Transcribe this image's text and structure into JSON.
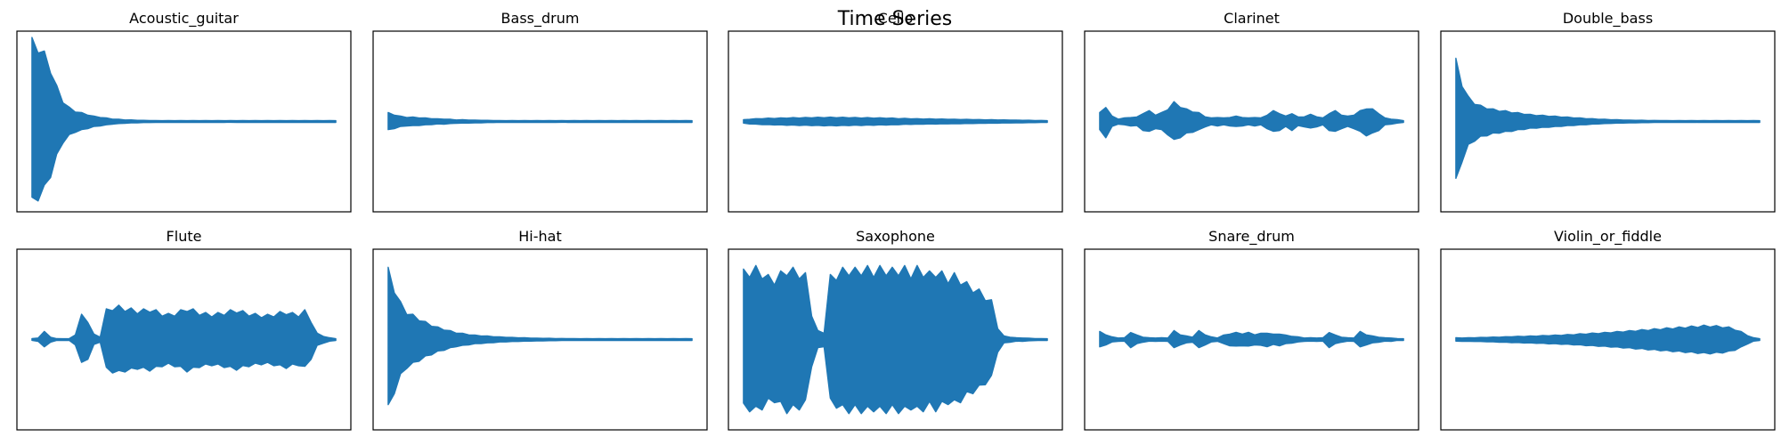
{
  "figure": {
    "title": "Time Series",
    "series_color": "#1f77b4"
  },
  "chart_data": [
    {
      "type": "line",
      "title": "Acoustic_guitar",
      "xlabel": "",
      "ylabel": "",
      "ylim": [
        -1,
        1
      ],
      "grid": false,
      "envelope": [
        0.93,
        0.88,
        0.78,
        0.62,
        0.4,
        0.24,
        0.16,
        0.12,
        0.1,
        0.08,
        0.06,
        0.05,
        0.04,
        0.03,
        0.025,
        0.02,
        0.018,
        0.015,
        0.013,
        0.012,
        0.011,
        0.01,
        0.01,
        0.01,
        0.01,
        0.01,
        0.01,
        0.01,
        0.01,
        0.01,
        0.01,
        0.01,
        0.01,
        0.01,
        0.01,
        0.01,
        0.01,
        0.01,
        0.01,
        0.01,
        0.01,
        0.01,
        0.01,
        0.01,
        0.01,
        0.01,
        0.01,
        0.01,
        0.01,
        0.01
      ]
    },
    {
      "type": "line",
      "title": "Bass_drum",
      "xlabel": "",
      "ylabel": "",
      "ylim": [
        -1,
        1
      ],
      "grid": false,
      "envelope": [
        0.1,
        0.08,
        0.06,
        0.05,
        0.05,
        0.045,
        0.04,
        0.035,
        0.03,
        0.03,
        0.025,
        0.02,
        0.02,
        0.018,
        0.016,
        0.015,
        0.013,
        0.012,
        0.01,
        0.01,
        0.01,
        0.01,
        0.01,
        0.01,
        0.01,
        0.01,
        0.01,
        0.01,
        0.01,
        0.01,
        0.01,
        0.01,
        0.01,
        0.01,
        0.01,
        0.01,
        0.01,
        0.01,
        0.01,
        0.01,
        0.01,
        0.01,
        0.01,
        0.01,
        0.01,
        0.01,
        0.01,
        0.01,
        0.01,
        0.01
      ]
    },
    {
      "type": "line",
      "title": "Cello",
      "xlabel": "",
      "ylabel": "",
      "ylim": [
        -1,
        1
      ],
      "grid": false,
      "envelope": [
        0.02,
        0.028,
        0.032,
        0.035,
        0.037,
        0.038,
        0.04,
        0.042,
        0.043,
        0.044,
        0.045,
        0.046,
        0.047,
        0.048,
        0.048,
        0.048,
        0.047,
        0.046,
        0.045,
        0.044,
        0.043,
        0.042,
        0.041,
        0.04,
        0.038,
        0.036,
        0.034,
        0.033,
        0.032,
        0.031,
        0.03,
        0.029,
        0.028,
        0.027,
        0.026,
        0.025,
        0.024,
        0.023,
        0.022,
        0.021,
        0.02,
        0.019,
        0.018,
        0.017,
        0.016,
        0.015,
        0.014,
        0.013,
        0.012,
        0.01
      ]
    },
    {
      "type": "line",
      "title": "Clarinet",
      "xlabel": "",
      "ylabel": "",
      "ylim": [
        -1,
        1
      ],
      "grid": false,
      "envelope": [
        0.1,
        0.18,
        0.06,
        0.03,
        0.04,
        0.05,
        0.05,
        0.1,
        0.12,
        0.08,
        0.1,
        0.15,
        0.22,
        0.18,
        0.14,
        0.12,
        0.1,
        0.06,
        0.04,
        0.05,
        0.04,
        0.05,
        0.06,
        0.05,
        0.04,
        0.05,
        0.04,
        0.08,
        0.12,
        0.1,
        0.06,
        0.1,
        0.05,
        0.06,
        0.08,
        0.06,
        0.04,
        0.1,
        0.12,
        0.08,
        0.06,
        0.08,
        0.12,
        0.16,
        0.14,
        0.1,
        0.04,
        0.03,
        0.02,
        0.01
      ]
    },
    {
      "type": "line",
      "title": "Double_bass",
      "xlabel": "",
      "ylabel": "",
      "ylim": [
        -1,
        1
      ],
      "grid": false,
      "envelope": [
        0.7,
        0.45,
        0.28,
        0.22,
        0.18,
        0.16,
        0.14,
        0.13,
        0.12,
        0.11,
        0.1,
        0.09,
        0.08,
        0.075,
        0.07,
        0.065,
        0.06,
        0.055,
        0.05,
        0.045,
        0.04,
        0.036,
        0.032,
        0.028,
        0.025,
        0.022,
        0.02,
        0.018,
        0.016,
        0.015,
        0.014,
        0.013,
        0.012,
        0.011,
        0.01,
        0.01,
        0.01,
        0.01,
        0.01,
        0.01,
        0.01,
        0.01,
        0.01,
        0.01,
        0.01,
        0.01,
        0.01,
        0.01,
        0.01,
        0.01
      ]
    },
    {
      "type": "line",
      "title": "Flute",
      "xlabel": "",
      "ylabel": "",
      "ylim": [
        -1,
        1
      ],
      "grid": false,
      "envelope": [
        0.01,
        0.02,
        0.09,
        0.03,
        0.01,
        0.01,
        0.01,
        0.06,
        0.28,
        0.22,
        0.06,
        0.03,
        0.34,
        0.37,
        0.38,
        0.36,
        0.35,
        0.33,
        0.34,
        0.35,
        0.33,
        0.3,
        0.29,
        0.3,
        0.33,
        0.36,
        0.34,
        0.31,
        0.3,
        0.29,
        0.3,
        0.31,
        0.33,
        0.34,
        0.32,
        0.3,
        0.29,
        0.28,
        0.28,
        0.29,
        0.31,
        0.32,
        0.3,
        0.29,
        0.33,
        0.22,
        0.07,
        0.04,
        0.02,
        0.01
      ]
    },
    {
      "type": "line",
      "title": "Hi-hat",
      "xlabel": "",
      "ylabel": "",
      "ylim": [
        -1,
        1
      ],
      "grid": false,
      "envelope": [
        0.8,
        0.6,
        0.42,
        0.32,
        0.28,
        0.24,
        0.2,
        0.17,
        0.14,
        0.12,
        0.1,
        0.08,
        0.07,
        0.06,
        0.05,
        0.045,
        0.04,
        0.035,
        0.03,
        0.027,
        0.024,
        0.022,
        0.02,
        0.018,
        0.016,
        0.015,
        0.014,
        0.013,
        0.012,
        0.011,
        0.01,
        0.01,
        0.01,
        0.01,
        0.01,
        0.01,
        0.01,
        0.01,
        0.01,
        0.01,
        0.01,
        0.01,
        0.01,
        0.01,
        0.01,
        0.01,
        0.01,
        0.01,
        0.01,
        0.01
      ]
    },
    {
      "type": "line",
      "title": "Saxophone",
      "xlabel": "",
      "ylabel": "",
      "ylim": [
        -1,
        1
      ],
      "grid": false,
      "envelope": [
        0.78,
        0.8,
        0.82,
        0.78,
        0.72,
        0.7,
        0.76,
        0.82,
        0.8,
        0.78,
        0.74,
        0.3,
        0.1,
        0.08,
        0.72,
        0.76,
        0.8,
        0.82,
        0.8,
        0.82,
        0.82,
        0.8,
        0.82,
        0.82,
        0.8,
        0.82,
        0.82,
        0.78,
        0.82,
        0.8,
        0.76,
        0.8,
        0.76,
        0.72,
        0.74,
        0.7,
        0.64,
        0.6,
        0.56,
        0.5,
        0.44,
        0.14,
        0.04,
        0.03,
        0.02,
        0.02,
        0.015,
        0.012,
        0.01,
        0.01
      ]
    },
    {
      "type": "line",
      "title": "Snare_drum",
      "xlabel": "",
      "ylabel": "",
      "ylim": [
        -1,
        1
      ],
      "grid": false,
      "envelope": [
        0.09,
        0.06,
        0.03,
        0.02,
        0.02,
        0.09,
        0.05,
        0.03,
        0.02,
        0.02,
        0.02,
        0.02,
        0.1,
        0.06,
        0.04,
        0.03,
        0.1,
        0.06,
        0.03,
        0.02,
        0.05,
        0.07,
        0.08,
        0.07,
        0.08,
        0.06,
        0.07,
        0.08,
        0.06,
        0.07,
        0.05,
        0.04,
        0.03,
        0.02,
        0.02,
        0.02,
        0.02,
        0.09,
        0.05,
        0.03,
        0.02,
        0.02,
        0.09,
        0.06,
        0.04,
        0.03,
        0.02,
        0.02,
        0.01,
        0.01
      ]
    },
    {
      "type": "line",
      "title": "Violin_or_fiddle",
      "xlabel": "",
      "ylabel": "",
      "ylim": [
        -1,
        1
      ],
      "grid": false,
      "envelope": [
        0.02,
        0.02,
        0.021,
        0.022,
        0.024,
        0.026,
        0.028,
        0.03,
        0.032,
        0.034,
        0.036,
        0.038,
        0.04,
        0.042,
        0.045,
        0.048,
        0.05,
        0.053,
        0.056,
        0.06,
        0.064,
        0.068,
        0.072,
        0.076,
        0.08,
        0.085,
        0.09,
        0.095,
        0.1,
        0.105,
        0.11,
        0.115,
        0.12,
        0.125,
        0.13,
        0.135,
        0.14,
        0.145,
        0.15,
        0.155,
        0.16,
        0.16,
        0.155,
        0.15,
        0.14,
        0.12,
        0.09,
        0.05,
        0.02,
        0.01
      ]
    }
  ]
}
